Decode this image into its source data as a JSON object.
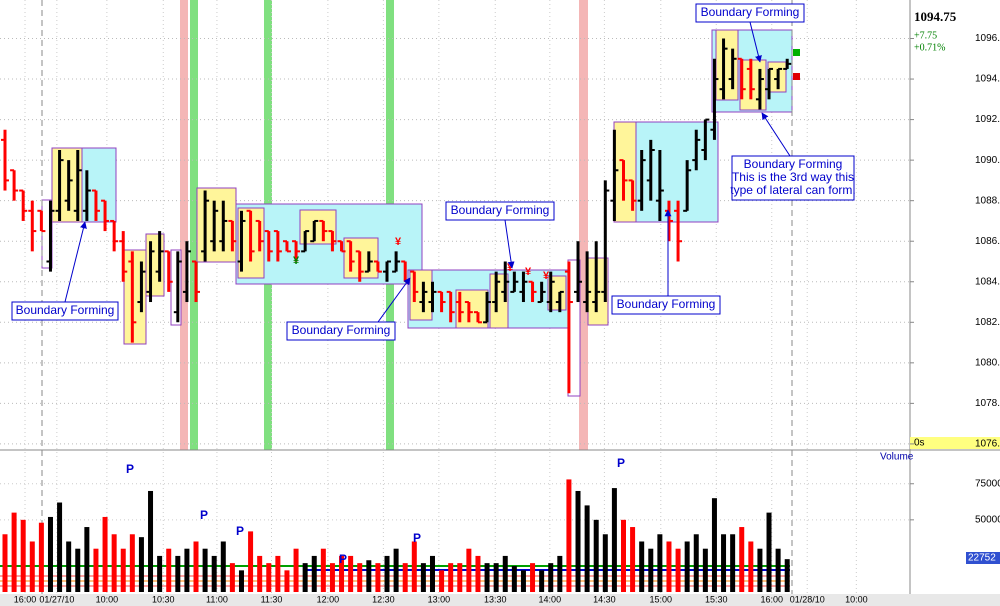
{
  "chart_data": {
    "type": "ohlc",
    "price_label": "1094.75",
    "change": "+7.75",
    "change_pct": "+0.71%",
    "timer": "0s",
    "up_color": "#000000",
    "down_color": "#ff0000",
    "grid": true,
    "xlim": [
      -0.55,
      99.5
    ],
    "xticks": [
      {
        "value": 2.2,
        "label": "16:00"
      },
      {
        "value": 5.7,
        "label": "01/27/10"
      },
      {
        "value": 11.2,
        "label": "10:00"
      },
      {
        "value": 17.4,
        "label": "10:30"
      },
      {
        "value": 23.3,
        "label": "11:00"
      },
      {
        "value": 29.3,
        "label": "11:30"
      },
      {
        "value": 35.5,
        "label": "12:00"
      },
      {
        "value": 41.6,
        "label": "12:30"
      },
      {
        "value": 47.7,
        "label": "13:00"
      },
      {
        "value": 53.9,
        "label": "13:30"
      },
      {
        "value": 59.9,
        "label": "14:00"
      },
      {
        "value": 65.9,
        "label": "14:30"
      },
      {
        "value": 72.1,
        "label": "15:00"
      },
      {
        "value": 78.2,
        "label": "15:30"
      },
      {
        "value": 84.3,
        "label": "16:00"
      },
      {
        "value": 88.2,
        "label": "01/28/10"
      },
      {
        "value": 93.6,
        "label": "10:00"
      }
    ],
    "ylim": [
      1075.7,
      1097.9
    ],
    "yticks": [
      {
        "value": 1076,
        "label": "1076.00"
      },
      {
        "value": 1078,
        "label": "1078.00"
      },
      {
        "value": 1080,
        "label": "1080.00"
      },
      {
        "value": 1082,
        "label": "1082.00"
      },
      {
        "value": 1084,
        "label": "1084.00"
      },
      {
        "value": 1086,
        "label": "1086.00"
      },
      {
        "value": 1088,
        "label": "1088.00"
      },
      {
        "value": 1090,
        "label": "1090.00"
      },
      {
        "value": 1092,
        "label": "1092.00"
      },
      {
        "value": 1094,
        "label": "1094.00"
      },
      {
        "value": 1096,
        "label": "1096.00"
      }
    ],
    "open": [
      1091,
      1089.5,
      1088.5,
      1087.5,
      1087.5,
      1085,
      1087.5,
      1088,
      1087.5,
      1087.5,
      1088.5,
      1088,
      1087,
      1086,
      1085,
      1083,
      1083.5,
      1084.5,
      1085.5,
      1082.5,
      1083.5,
      1085,
      1085.5,
      1086,
      1086,
      1087,
      1085,
      1087.5,
      1087,
      1086.5,
      1086.5,
      1086,
      1086,
      1085.5,
      1086,
      1087,
      1086.5,
      1086,
      1086,
      1085.5,
      1084.5,
      1085,
      1084.5,
      1084.5,
      1085,
      1084.5,
      1083,
      1083,
      1083.5,
      1083.5,
      1083,
      1083,
      1082.5,
      1082,
      1083,
      1083.5,
      1083.5,
      1083.5,
      1084,
      1083,
      1083,
      1083,
      1084.5,
      1083.5,
      1083,
      1083,
      1083.5,
      1088,
      1090,
      1089,
      1088,
      1089,
      1088,
      1087.5,
      1087.5,
      1087.5,
      1090,
      1090.5,
      1091.5,
      1093.5,
      1094,
      1095,
      1094.5,
      1093,
      1093.5,
      1094,
      1094.5
    ],
    "high": [
      1091.5,
      1089.5,
      1088.5,
      1088,
      1087.5,
      1088,
      1090.5,
      1090,
      1090.5,
      1089.5,
      1088.5,
      1088,
      1087,
      1086.5,
      1085.5,
      1085,
      1086,
      1086.5,
      1085.5,
      1085.5,
      1086,
      1085,
      1088.5,
      1088,
      1088,
      1087,
      1087.5,
      1087.5,
      1087,
      1086.5,
      1086.5,
      1086,
      1086,
      1086.5,
      1087,
      1087,
      1086.5,
      1086,
      1086,
      1085.5,
      1085.5,
      1085,
      1085,
      1085.5,
      1085,
      1084.5,
      1084,
      1084,
      1083.5,
      1083.5,
      1083.5,
      1083,
      1082.5,
      1083.5,
      1084.5,
      1085,
      1084.5,
      1084.5,
      1084,
      1084,
      1084.5,
      1083.5,
      1085,
      1086,
      1085.5,
      1086,
      1089,
      1091.5,
      1090,
      1089,
      1090.5,
      1091,
      1090.5,
      1088,
      1088,
      1090,
      1091.5,
      1092,
      1095,
      1096,
      1095.5,
      1095,
      1095,
      1094.5,
      1094.5,
      1094.5,
      1095
    ],
    "low": [
      1088.5,
      1088,
      1087,
      1085.5,
      1086.5,
      1084.5,
      1087,
      1087.5,
      1087,
      1087,
      1087,
      1086.5,
      1085.5,
      1084,
      1081,
      1082.5,
      1083,
      1084,
      1083.5,
      1082,
      1083,
      1083,
      1085,
      1085.5,
      1085.5,
      1085.5,
      1084.5,
      1085,
      1085.5,
      1085,
      1085,
      1085.5,
      1085,
      1085.5,
      1086,
      1086,
      1085.5,
      1085.5,
      1084.5,
      1084,
      1084.5,
      1084.5,
      1084,
      1084.5,
      1084,
      1083,
      1082.5,
      1082.5,
      1082.5,
      1082,
      1082,
      1082,
      1082,
      1082,
      1082.5,
      1083,
      1083.5,
      1083,
      1083,
      1083,
      1082.5,
      1082.5,
      1078.5,
      1083,
      1082.5,
      1082.5,
      1083,
      1087,
      1088,
      1087.5,
      1087.5,
      1088,
      1087,
      1086,
      1085,
      1087.5,
      1089.5,
      1090,
      1091,
      1093,
      1093.5,
      1093,
      1093,
      1092.5,
      1093,
      1093.5,
      1094.5
    ],
    "close": [
      1089,
      1088.5,
      1087.5,
      1086.5,
      1086.5,
      1087.5,
      1090,
      1089,
      1089.5,
      1088.5,
      1087.5,
      1087,
      1086,
      1084.5,
      1082,
      1084.5,
      1085.5,
      1085.5,
      1084,
      1085,
      1085.5,
      1083.5,
      1088,
      1087.5,
      1087,
      1086,
      1087,
      1085.5,
      1086,
      1085.5,
      1085.5,
      1085.5,
      1085.5,
      1086.5,
      1087,
      1086.5,
      1086,
      1085.5,
      1085,
      1084.5,
      1085,
      1084.5,
      1085,
      1085,
      1084,
      1083.5,
      1083.5,
      1083.5,
      1083,
      1082.5,
      1082.5,
      1082.5,
      1082,
      1083,
      1084,
      1084,
      1084,
      1084,
      1083.5,
      1083.5,
      1084,
      1083.5,
      1083,
      1084,
      1083.5,
      1083.5,
      1088.5,
      1089.5,
      1089,
      1088,
      1090,
      1090.5,
      1088.5,
      1087,
      1086,
      1089.5,
      1091,
      1092,
      1094,
      1095.5,
      1095,
      1093.5,
      1093.5,
      1094,
      1094.5,
      1094.5,
      1094.75
    ],
    "price_markers": [
      {
        "text": "¥",
        "color": "#ff0000"
      },
      {
        "text": "¥",
        "color": "#008000"
      },
      {
        "text": "¥",
        "color": "#ff0000"
      },
      {
        "text": "¥",
        "color": "#ff0000"
      },
      {
        "text": "¥",
        "color": "#ff0000"
      }
    ],
    "annotations": [
      {
        "lines": [
          "Boundary Forming"
        ]
      },
      {
        "lines": [
          "Boundary Forming"
        ]
      },
      {
        "lines": [
          "Boundary Forming"
        ]
      },
      {
        "lines": [
          "Boundary Forming"
        ]
      },
      {
        "lines": [
          "Boundary Forming"
        ]
      },
      {
        "lines": [
          "Boundary Forming",
          "This is the 3rd way this",
          "type of lateral can form."
        ]
      }
    ],
    "volume": {
      "label": "Volume",
      "last_label": "22752",
      "ylim": [
        0,
        97000
      ],
      "yticks": [
        50000,
        75000
      ],
      "markers": [
        "P",
        "P",
        "P",
        "P",
        "P",
        "P"
      ],
      "values": [
        40000,
        55000,
        50000,
        35000,
        48000,
        52000,
        62000,
        35000,
        30000,
        45000,
        30000,
        52000,
        40000,
        30000,
        40000,
        38000,
        70000,
        25000,
        30000,
        25000,
        30000,
        35000,
        30000,
        25000,
        35000,
        20000,
        15000,
        42000,
        25000,
        20000,
        25000,
        15000,
        30000,
        20000,
        25000,
        30000,
        20000,
        25000,
        25000,
        20000,
        22000,
        20000,
        25000,
        30000,
        20000,
        35000,
        20000,
        25000,
        15000,
        20000,
        20000,
        30000,
        25000,
        20000,
        20000,
        25000,
        18000,
        15000,
        20000,
        15000,
        20000,
        25000,
        78000,
        70000,
        60000,
        50000,
        40000,
        72000,
        50000,
        45000,
        35000,
        30000,
        40000,
        35000,
        30000,
        35000,
        40000,
        30000,
        65000,
        40000,
        40000,
        45000,
        35000,
        30000,
        55000,
        30000,
        22752
      ]
    }
  }
}
